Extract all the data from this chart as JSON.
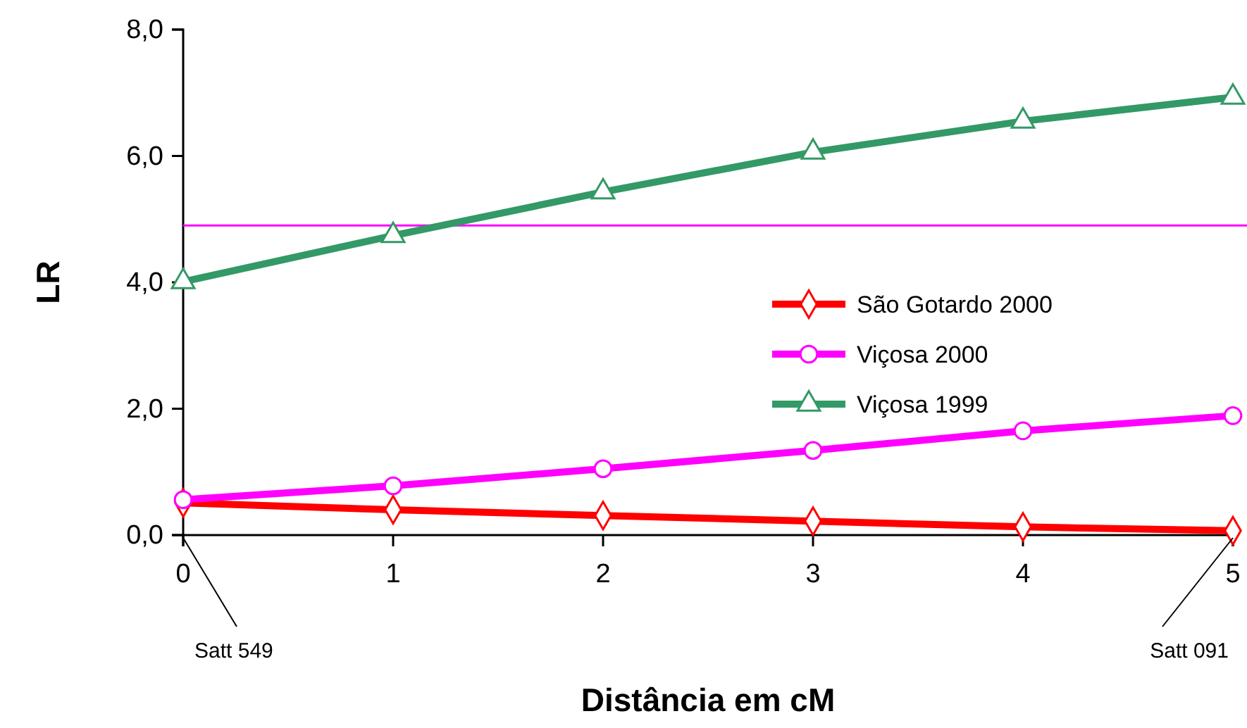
{
  "chart_data": {
    "type": "line",
    "xlabel": "Distância em cM",
    "ylabel": "LR",
    "x": [
      0,
      1,
      2,
      3,
      4,
      5
    ],
    "xlim": [
      0,
      5
    ],
    "xticks": [
      0,
      1,
      2,
      3,
      4,
      5
    ],
    "ylim": [
      0,
      8
    ],
    "yticks": [
      {
        "value": 0,
        "label": "0,0"
      },
      {
        "value": 2,
        "label": "2,0"
      },
      {
        "value": 4,
        "label": "4,0"
      },
      {
        "value": 6,
        "label": "6,0"
      },
      {
        "value": 8,
        "label": "8,0"
      }
    ],
    "series": [
      {
        "name": "São Gotardo 2000",
        "color": "#ff0000",
        "marker": "diamond",
        "values": [
          0.51,
          0.4,
          0.31,
          0.22,
          0.13,
          0.07
        ]
      },
      {
        "name": "Viçosa 2000",
        "color": "#ff00ff",
        "marker": "circle",
        "values": [
          0.56,
          0.78,
          1.05,
          1.34,
          1.65,
          1.89
        ]
      },
      {
        "name": "Viçosa 1999",
        "color": "#339966",
        "marker": "triangle",
        "values": [
          4.01,
          4.74,
          5.43,
          6.06,
          6.55,
          6.93
        ]
      }
    ],
    "ref_lines": [
      {
        "axis": "y",
        "value": 4.9,
        "color": "#ff00ff"
      }
    ],
    "annotations": [
      "Satt 549",
      "Satt 091"
    ],
    "legend": "right",
    "grid": false,
    "line_style": "solid"
  }
}
